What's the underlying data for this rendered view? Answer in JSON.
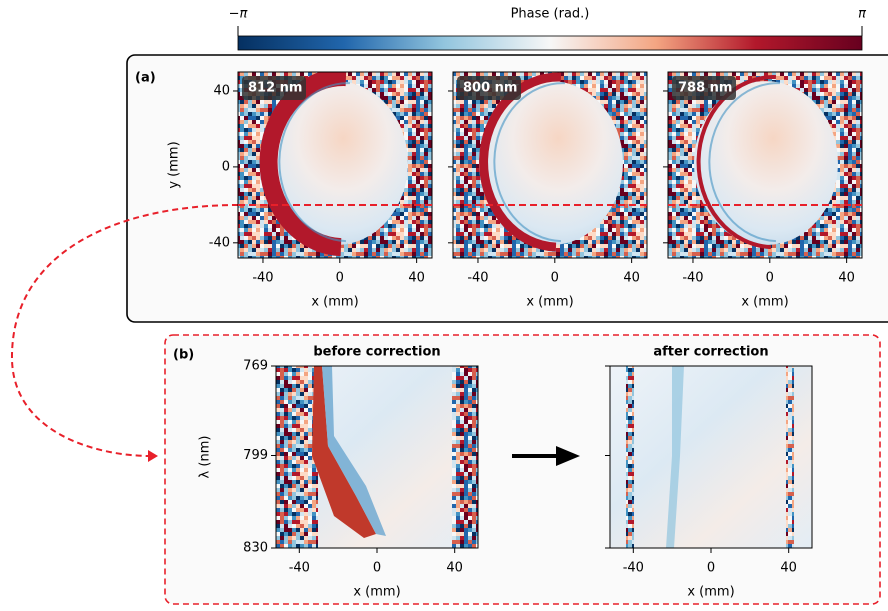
{
  "colorbar": {
    "title": "Phase (rad.)",
    "min_label": "−π",
    "max_label": "π"
  },
  "panel_a": {
    "label": "(a)",
    "xlabel": "x (mm)",
    "ylabel": "y (mm)",
    "xlim": [
      -53,
      48
    ],
    "ylim": [
      -48,
      50
    ],
    "xticks": [
      -40,
      0,
      40
    ],
    "yticks": [
      40,
      0,
      -40
    ],
    "plots": [
      {
        "tag": "812 nm"
      },
      {
        "tag": "800 nm"
      },
      {
        "tag": "788 nm"
      }
    ]
  },
  "panel_b": {
    "label": "(b)",
    "xlabel": "x (mm)",
    "ylabel": "λ (nm)",
    "xlim": [
      -52,
      52
    ],
    "ylim": [
      769,
      830
    ],
    "xticks": [
      -40,
      0,
      40
    ],
    "yticks": [
      769,
      799,
      830
    ],
    "plots": [
      {
        "title": "before correction"
      },
      {
        "title": "after correction"
      }
    ]
  }
}
